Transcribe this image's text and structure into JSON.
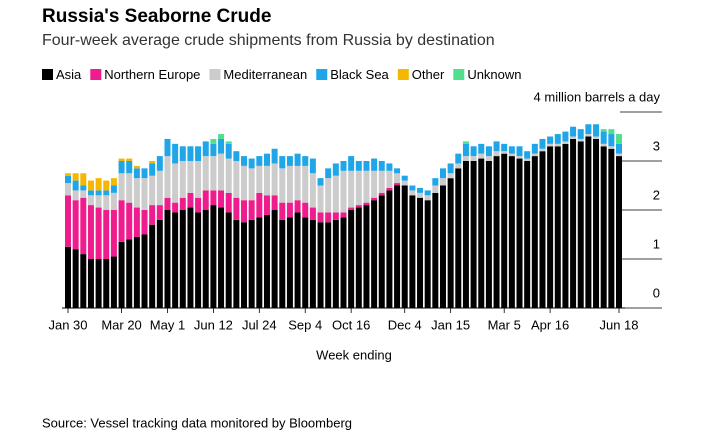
{
  "chart_data": {
    "type": "stacked_bar",
    "title": "Russia's Seaborne Crude",
    "subtitle": "Four-week average crude shipments from Russia by destination",
    "x_label": "Week ending",
    "source": "Source: Vessel tracking data monitored by Bloomberg",
    "categories": [
      "Jan 30",
      null,
      null,
      null,
      null,
      null,
      null,
      "Mar 20",
      null,
      null,
      null,
      null,
      null,
      "May 1",
      null,
      null,
      null,
      null,
      null,
      "Jun 12",
      null,
      null,
      null,
      null,
      null,
      "Jul 24",
      null,
      null,
      null,
      null,
      null,
      "Sep 4",
      null,
      null,
      null,
      null,
      null,
      "Oct 16",
      null,
      null,
      null,
      null,
      null,
      null,
      "Dec 4",
      null,
      null,
      null,
      null,
      null,
      "Jan 15",
      null,
      null,
      null,
      null,
      null,
      null,
      "Mar 5",
      null,
      null,
      null,
      null,
      null,
      "Apr 16",
      null,
      null,
      null,
      null,
      null,
      null,
      null,
      null,
      "Jun 18"
    ],
    "series": [
      {
        "name": "Asia",
        "color": "#000000",
        "values": [
          1.25,
          1.2,
          1.1,
          1.0,
          1.0,
          1.0,
          1.05,
          1.35,
          1.4,
          1.45,
          1.5,
          1.7,
          1.8,
          2.0,
          1.95,
          2.0,
          2.05,
          1.95,
          2.0,
          2.1,
          2.05,
          1.95,
          1.8,
          1.75,
          1.8,
          1.85,
          1.9,
          2.0,
          1.8,
          1.85,
          1.95,
          1.85,
          1.8,
          1.75,
          1.75,
          1.8,
          1.85,
          2.0,
          2.05,
          2.1,
          2.2,
          2.3,
          2.4,
          2.5,
          2.5,
          2.3,
          2.25,
          2.2,
          2.35,
          2.5,
          2.65,
          2.85,
          3.0,
          3.0,
          3.05,
          3.0,
          3.1,
          3.15,
          3.1,
          3.05,
          3.0,
          3.1,
          3.2,
          3.3,
          3.3,
          3.35,
          3.45,
          3.4,
          3.5,
          3.45,
          3.3,
          3.25,
          3.1
        ]
      },
      {
        "name": "Northern Europe",
        "color": "#ee1c8c",
        "values": [
          1.05,
          1.0,
          1.15,
          1.1,
          1.05,
          1.0,
          0.95,
          0.85,
          0.75,
          0.6,
          0.5,
          0.4,
          0.3,
          0.25,
          0.2,
          0.25,
          0.3,
          0.3,
          0.4,
          0.3,
          0.35,
          0.4,
          0.45,
          0.45,
          0.4,
          0.5,
          0.4,
          0.3,
          0.35,
          0.3,
          0.25,
          0.3,
          0.25,
          0.2,
          0.2,
          0.15,
          0.1,
          0.05,
          0.05,
          0.05,
          0.05,
          0.05,
          0.05,
          0.05,
          0,
          0,
          0,
          0,
          0,
          0,
          0,
          0,
          0,
          0,
          0,
          0,
          0,
          0,
          0,
          0,
          0,
          0,
          0,
          0,
          0,
          0,
          0,
          0,
          0,
          0,
          0,
          0,
          0
        ]
      },
      {
        "name": "Mediterranean",
        "color": "#cccccc",
        "values": [
          0.25,
          0.2,
          0.15,
          0.2,
          0.25,
          0.3,
          0.35,
          0.55,
          0.6,
          0.6,
          0.65,
          0.6,
          0.7,
          0.85,
          0.8,
          0.75,
          0.65,
          0.75,
          0.7,
          0.7,
          0.75,
          0.7,
          0.75,
          0.7,
          0.65,
          0.55,
          0.6,
          0.65,
          0.7,
          0.75,
          0.7,
          0.75,
          0.7,
          0.55,
          0.7,
          0.75,
          0.85,
          0.75,
          0.7,
          0.65,
          0.55,
          0.45,
          0.35,
          0.2,
          0.1,
          0.1,
          0.1,
          0.1,
          0.15,
          0.15,
          0.1,
          0.1,
          0.1,
          0.1,
          0.1,
          0.1,
          0.1,
          0.05,
          0.05,
          0.05,
          0.05,
          0.05,
          0.05,
          0.05,
          0.05,
          0.05,
          0.05,
          0.05,
          0.05,
          0.05,
          0.05,
          0.05,
          0.05
        ]
      },
      {
        "name": "Black Sea",
        "color": "#1fa6e8",
        "values": [
          0.15,
          0.2,
          0.1,
          0.1,
          0.1,
          0.1,
          0.15,
          0.25,
          0.25,
          0.2,
          0.2,
          0.25,
          0.3,
          0.35,
          0.4,
          0.3,
          0.3,
          0.3,
          0.3,
          0.25,
          0.3,
          0.3,
          0.2,
          0.2,
          0.2,
          0.2,
          0.25,
          0.3,
          0.25,
          0.2,
          0.25,
          0.2,
          0.3,
          0.15,
          0.2,
          0.25,
          0.2,
          0.3,
          0.2,
          0.2,
          0.25,
          0.2,
          0.15,
          0.1,
          0.1,
          0.1,
          0.1,
          0.1,
          0.15,
          0.2,
          0.2,
          0.2,
          0.25,
          0.2,
          0.2,
          0.2,
          0.2,
          0.15,
          0.15,
          0.2,
          0.15,
          0.2,
          0.2,
          0.15,
          0.2,
          0.2,
          0.2,
          0.2,
          0.2,
          0.25,
          0.25,
          0.25,
          0.2
        ]
      },
      {
        "name": "Other",
        "color": "#f5b800",
        "values": [
          0.05,
          0.15,
          0.25,
          0.2,
          0.25,
          0.2,
          0.15,
          0.05,
          0.05,
          0.05,
          0,
          0.05,
          0,
          0,
          0,
          0,
          0,
          0,
          0,
          0,
          0,
          0,
          0,
          0,
          0,
          0,
          0,
          0,
          0,
          0,
          0,
          0,
          0,
          0,
          0,
          0,
          0,
          0,
          0,
          0,
          0,
          0,
          0,
          0,
          0,
          0,
          0,
          0,
          0,
          0,
          0,
          0,
          0,
          0,
          0,
          0,
          0,
          0,
          0,
          0,
          0,
          0,
          0,
          0,
          0,
          0,
          0,
          0,
          0,
          0,
          0,
          0,
          0
        ]
      },
      {
        "name": "Unknown",
        "color": "#4ee08c",
        "values": [
          0,
          0,
          0,
          0,
          0,
          0,
          0,
          0,
          0,
          0,
          0,
          0,
          0,
          0,
          0,
          0,
          0,
          0,
          0,
          0.1,
          0.1,
          0.05,
          0,
          0,
          0,
          0,
          0,
          0,
          0,
          0,
          0,
          0,
          0,
          0,
          0,
          0,
          0,
          0,
          0,
          0,
          0,
          0,
          0,
          0,
          0,
          0,
          0,
          0,
          0,
          0,
          0,
          0,
          0.05,
          0,
          0,
          0,
          0,
          0,
          0,
          0,
          0,
          0,
          0,
          0,
          0,
          0,
          0,
          0,
          0,
          0,
          0.05,
          0.1,
          0.2
        ]
      }
    ],
    "ylim": [
      0,
      4
    ],
    "yticks": [
      0,
      1,
      2,
      3,
      {
        "value": 4,
        "label": "4 million barrels a day"
      }
    ],
    "legend": "top-left"
  }
}
